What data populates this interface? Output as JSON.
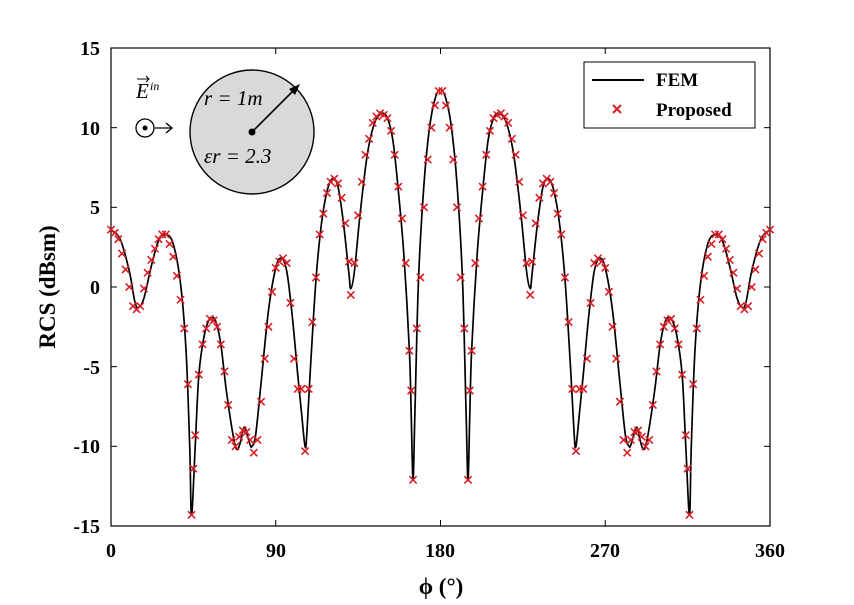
{
  "chart_data": {
    "type": "line",
    "xlabel": "ϕ (°)",
    "ylabel": "RCS (dBsm)",
    "xlim": [
      0,
      360
    ],
    "ylim": [
      -15,
      15
    ],
    "xticks": [
      "0",
      "90",
      "180",
      "270",
      "360"
    ],
    "yticks": [
      "15",
      "10",
      "5",
      "0",
      "-5",
      "-10",
      "-15"
    ],
    "grid": false,
    "legend_position": "top-right",
    "series": [
      {
        "name": "FEM",
        "style": "solid-line",
        "color": "#000000",
        "points": [
          [
            0,
            3.6
          ],
          [
            5,
            3.0
          ],
          [
            10,
            1.0
          ],
          [
            13,
            -0.9
          ],
          [
            15,
            -1.3
          ],
          [
            18,
            -0.7
          ],
          [
            22,
            1.3
          ],
          [
            26,
            2.9
          ],
          [
            30,
            3.3
          ],
          [
            34,
            2.7
          ],
          [
            38,
            0.2
          ],
          [
            41,
            -4.0
          ],
          [
            43,
            -10.0
          ],
          [
            44,
            -14.3
          ],
          [
            46,
            -10.0
          ],
          [
            48,
            -5.5
          ],
          [
            51,
            -3.0
          ],
          [
            54,
            -2.0
          ],
          [
            57,
            -2.1
          ],
          [
            60,
            -3.6
          ],
          [
            63,
            -6.5
          ],
          [
            67,
            -9.5
          ],
          [
            69,
            -10.2
          ],
          [
            71,
            -9.6
          ],
          [
            72,
            -9.0
          ],
          [
            73,
            -8.8
          ],
          [
            74,
            -9.1
          ],
          [
            76,
            -9.9
          ],
          [
            77,
            -10.0
          ],
          [
            79,
            -9.3
          ],
          [
            82,
            -6.0
          ],
          [
            86,
            -1.5
          ],
          [
            90,
            1.2
          ],
          [
            93,
            1.8
          ],
          [
            96,
            1.0
          ],
          [
            99,
            -1.8
          ],
          [
            102,
            -5.5
          ],
          [
            104,
            -7.8
          ],
          [
            106,
            -10.0
          ],
          [
            107,
            -9.2
          ],
          [
            109,
            -5.0
          ],
          [
            112,
            0.5
          ],
          [
            115,
            4.0
          ],
          [
            118,
            6.0
          ],
          [
            121,
            6.8
          ],
          [
            124,
            6.3
          ],
          [
            127,
            4.0
          ],
          [
            130,
            0.8
          ],
          [
            131,
            -0.1
          ],
          [
            133,
            1.0
          ],
          [
            136,
            4.5
          ],
          [
            140,
            8.3
          ],
          [
            144,
            10.3
          ],
          [
            148,
            10.9
          ],
          [
            151,
            10.6
          ],
          [
            154,
            9.2
          ],
          [
            157,
            6.0
          ],
          [
            160,
            2.0
          ],
          [
            163,
            -4.0
          ],
          [
            164,
            -8.0
          ],
          [
            165,
            -12.1
          ],
          [
            166,
            -8.0
          ],
          [
            168,
            0.5
          ],
          [
            171,
            6.5
          ],
          [
            174,
            10.0
          ],
          [
            177,
            11.8
          ],
          [
            180,
            12.4
          ],
          [
            183,
            11.8
          ],
          [
            186,
            10.0
          ],
          [
            189,
            6.5
          ],
          [
            192,
            0.5
          ],
          [
            194,
            -8.0
          ],
          [
            195,
            -12.1
          ],
          [
            196,
            -8.0
          ],
          [
            197,
            -4.0
          ],
          [
            200,
            2.0
          ],
          [
            203,
            6.0
          ],
          [
            206,
            9.2
          ],
          [
            209,
            10.6
          ],
          [
            212,
            10.9
          ],
          [
            216,
            10.3
          ],
          [
            220,
            8.3
          ],
          [
            224,
            4.5
          ],
          [
            227,
            1.0
          ],
          [
            229,
            -0.1
          ],
          [
            230,
            0.8
          ],
          [
            233,
            4.0
          ],
          [
            236,
            6.3
          ],
          [
            239,
            6.8
          ],
          [
            242,
            6.0
          ],
          [
            245,
            4.0
          ],
          [
            248,
            0.5
          ],
          [
            251,
            -5.0
          ],
          [
            253,
            -9.2
          ],
          [
            254,
            -10.0
          ],
          [
            256,
            -7.8
          ],
          [
            258,
            -5.5
          ],
          [
            261,
            -1.8
          ],
          [
            264,
            1.0
          ],
          [
            267,
            1.8
          ],
          [
            270,
            1.2
          ],
          [
            274,
            -1.5
          ],
          [
            278,
            -6.0
          ],
          [
            281,
            -9.3
          ],
          [
            283,
            -10.0
          ],
          [
            284,
            -9.9
          ],
          [
            286,
            -9.1
          ],
          [
            287,
            -8.8
          ],
          [
            288,
            -9.0
          ],
          [
            289,
            -9.6
          ],
          [
            291,
            -10.2
          ],
          [
            293,
            -9.5
          ],
          [
            297,
            -6.5
          ],
          [
            300,
            -3.6
          ],
          [
            303,
            -2.1
          ],
          [
            306,
            -2.0
          ],
          [
            309,
            -3.0
          ],
          [
            312,
            -5.5
          ],
          [
            314,
            -10.0
          ],
          [
            316,
            -14.3
          ],
          [
            317,
            -10.0
          ],
          [
            319,
            -4.0
          ],
          [
            322,
            0.2
          ],
          [
            326,
            2.7
          ],
          [
            330,
            3.3
          ],
          [
            334,
            2.9
          ],
          [
            338,
            1.3
          ],
          [
            342,
            -0.7
          ],
          [
            345,
            -1.3
          ],
          [
            347,
            -0.9
          ],
          [
            350,
            1.0
          ],
          [
            355,
            3.0
          ],
          [
            360,
            3.6
          ]
        ]
      },
      {
        "name": "Proposed",
        "style": "x-marker",
        "color": "#d71f26",
        "points": [
          [
            0,
            3.6
          ],
          [
            2,
            3.4
          ],
          [
            4,
            3.0
          ],
          [
            6,
            2.1
          ],
          [
            8,
            1.1
          ],
          [
            10,
            0.0
          ],
          [
            12,
            -1.2
          ],
          [
            14,
            -1.4
          ],
          [
            16,
            -1.2
          ],
          [
            18,
            -0.1
          ],
          [
            20,
            0.9
          ],
          [
            22,
            1.7
          ],
          [
            24,
            2.4
          ],
          [
            26,
            3.0
          ],
          [
            28,
            3.3
          ],
          [
            30,
            3.3
          ],
          [
            32,
            2.7
          ],
          [
            34,
            1.9
          ],
          [
            36,
            0.7
          ],
          [
            38,
            -0.8
          ],
          [
            40,
            -2.6
          ],
          [
            42,
            -6.1
          ],
          [
            44,
            -14.3
          ],
          [
            45,
            -11.4
          ],
          [
            46,
            -9.3
          ],
          [
            48,
            -5.5
          ],
          [
            50,
            -3.6
          ],
          [
            52,
            -2.6
          ],
          [
            54,
            -2.0
          ],
          [
            56,
            -2.1
          ],
          [
            58,
            -2.5
          ],
          [
            60,
            -3.6
          ],
          [
            62,
            -5.3
          ],
          [
            64,
            -7.4
          ],
          [
            66,
            -9.6
          ],
          [
            68,
            -10.0
          ],
          [
            70,
            -9.4
          ],
          [
            72,
            -9.0
          ],
          [
            74,
            -9.1
          ],
          [
            76,
            -9.6
          ],
          [
            78,
            -10.4
          ],
          [
            80,
            -9.6
          ],
          [
            82,
            -7.2
          ],
          [
            84,
            -4.5
          ],
          [
            86,
            -2.5
          ],
          [
            88,
            -0.3
          ],
          [
            90,
            1.2
          ],
          [
            92,
            1.6
          ],
          [
            94,
            1.8
          ],
          [
            96,
            1.5
          ],
          [
            98,
            -1.0
          ],
          [
            100,
            -4.5
          ],
          [
            102,
            -6.4
          ],
          [
            104,
            -6.4
          ],
          [
            106,
            -10.3
          ],
          [
            108,
            -6.4
          ],
          [
            110,
            -2.2
          ],
          [
            112,
            0.6
          ],
          [
            114,
            3.3
          ],
          [
            116,
            4.6
          ],
          [
            118,
            5.9
          ],
          [
            120,
            6.6
          ],
          [
            122,
            6.8
          ],
          [
            124,
            6.5
          ],
          [
            126,
            5.6
          ],
          [
            128,
            4.0
          ],
          [
            130,
            1.6
          ],
          [
            131,
            -0.5
          ],
          [
            133,
            1.5
          ],
          [
            135,
            4.5
          ],
          [
            137,
            6.6
          ],
          [
            139,
            8.3
          ],
          [
            141,
            9.3
          ],
          [
            143,
            10.3
          ],
          [
            145,
            10.7
          ],
          [
            147,
            10.9
          ],
          [
            149,
            10.8
          ],
          [
            151,
            10.6
          ],
          [
            153,
            9.8
          ],
          [
            155,
            8.3
          ],
          [
            157,
            6.3
          ],
          [
            159,
            4.3
          ],
          [
            161,
            1.5
          ],
          [
            163,
            -4.0
          ],
          [
            164,
            -6.5
          ],
          [
            165,
            -12.1
          ],
          [
            167,
            -2.6
          ],
          [
            169,
            0.6
          ],
          [
            171,
            5.0
          ],
          [
            173,
            8.0
          ],
          [
            175,
            10.0
          ],
          [
            177,
            11.4
          ],
          [
            179,
            12.3
          ],
          [
            181,
            12.3
          ],
          [
            183,
            11.4
          ],
          [
            185,
            10.0
          ],
          [
            187,
            8.0
          ],
          [
            189,
            5.0
          ],
          [
            191,
            0.6
          ],
          [
            193,
            -2.6
          ],
          [
            195,
            -12.1
          ],
          [
            196,
            -6.5
          ],
          [
            197,
            -4.0
          ],
          [
            199,
            1.5
          ],
          [
            201,
            4.3
          ],
          [
            203,
            6.3
          ],
          [
            205,
            8.3
          ],
          [
            207,
            9.8
          ],
          [
            209,
            10.6
          ],
          [
            211,
            10.8
          ],
          [
            213,
            10.9
          ],
          [
            215,
            10.7
          ],
          [
            217,
            10.3
          ],
          [
            219,
            9.3
          ],
          [
            221,
            8.3
          ],
          [
            223,
            6.6
          ],
          [
            225,
            4.5
          ],
          [
            227,
            1.5
          ],
          [
            229,
            -0.5
          ],
          [
            230,
            1.6
          ],
          [
            232,
            4.0
          ],
          [
            234,
            5.6
          ],
          [
            236,
            6.5
          ],
          [
            238,
            6.8
          ],
          [
            240,
            6.6
          ],
          [
            242,
            5.9
          ],
          [
            244,
            4.6
          ],
          [
            246,
            3.3
          ],
          [
            248,
            0.6
          ],
          [
            250,
            -2.2
          ],
          [
            252,
            -6.4
          ],
          [
            254,
            -10.3
          ],
          [
            256,
            -6.4
          ],
          [
            258,
            -6.4
          ],
          [
            260,
            -4.5
          ],
          [
            262,
            -1.0
          ],
          [
            264,
            1.5
          ],
          [
            266,
            1.8
          ],
          [
            268,
            1.6
          ],
          [
            270,
            1.2
          ],
          [
            272,
            -0.3
          ],
          [
            274,
            -2.5
          ],
          [
            276,
            -4.5
          ],
          [
            278,
            -7.2
          ],
          [
            280,
            -9.6
          ],
          [
            282,
            -10.4
          ],
          [
            284,
            -9.6
          ],
          [
            286,
            -9.1
          ],
          [
            288,
            -9.0
          ],
          [
            290,
            -9.4
          ],
          [
            292,
            -10.0
          ],
          [
            294,
            -9.6
          ],
          [
            296,
            -7.4
          ],
          [
            298,
            -5.3
          ],
          [
            300,
            -3.6
          ],
          [
            302,
            -2.5
          ],
          [
            304,
            -2.1
          ],
          [
            306,
            -2.0
          ],
          [
            308,
            -2.6
          ],
          [
            310,
            -3.6
          ],
          [
            312,
            -5.5
          ],
          [
            314,
            -9.3
          ],
          [
            315,
            -11.4
          ],
          [
            316,
            -14.3
          ],
          [
            318,
            -6.1
          ],
          [
            320,
            -2.6
          ],
          [
            322,
            -0.8
          ],
          [
            324,
            0.7
          ],
          [
            326,
            1.9
          ],
          [
            328,
            2.7
          ],
          [
            330,
            3.3
          ],
          [
            332,
            3.3
          ],
          [
            334,
            3.0
          ],
          [
            336,
            2.4
          ],
          [
            338,
            1.7
          ],
          [
            340,
            0.9
          ],
          [
            342,
            -0.1
          ],
          [
            344,
            -1.2
          ],
          [
            346,
            -1.4
          ],
          [
            348,
            -1.2
          ],
          [
            350,
            0.0
          ],
          [
            352,
            1.1
          ],
          [
            354,
            2.1
          ],
          [
            356,
            3.0
          ],
          [
            358,
            3.4
          ],
          [
            360,
            3.6
          ]
        ]
      }
    ],
    "inset": {
      "incident_field_label": "E",
      "incident_field_superscript": "in",
      "radius_label": "r = 1m",
      "permittivity_label": "εr = 2.3"
    }
  },
  "colors": {
    "fem_line": "#000000",
    "proposed_marker": "#d71f26",
    "cylinder_fill": "#d9d9d9"
  }
}
